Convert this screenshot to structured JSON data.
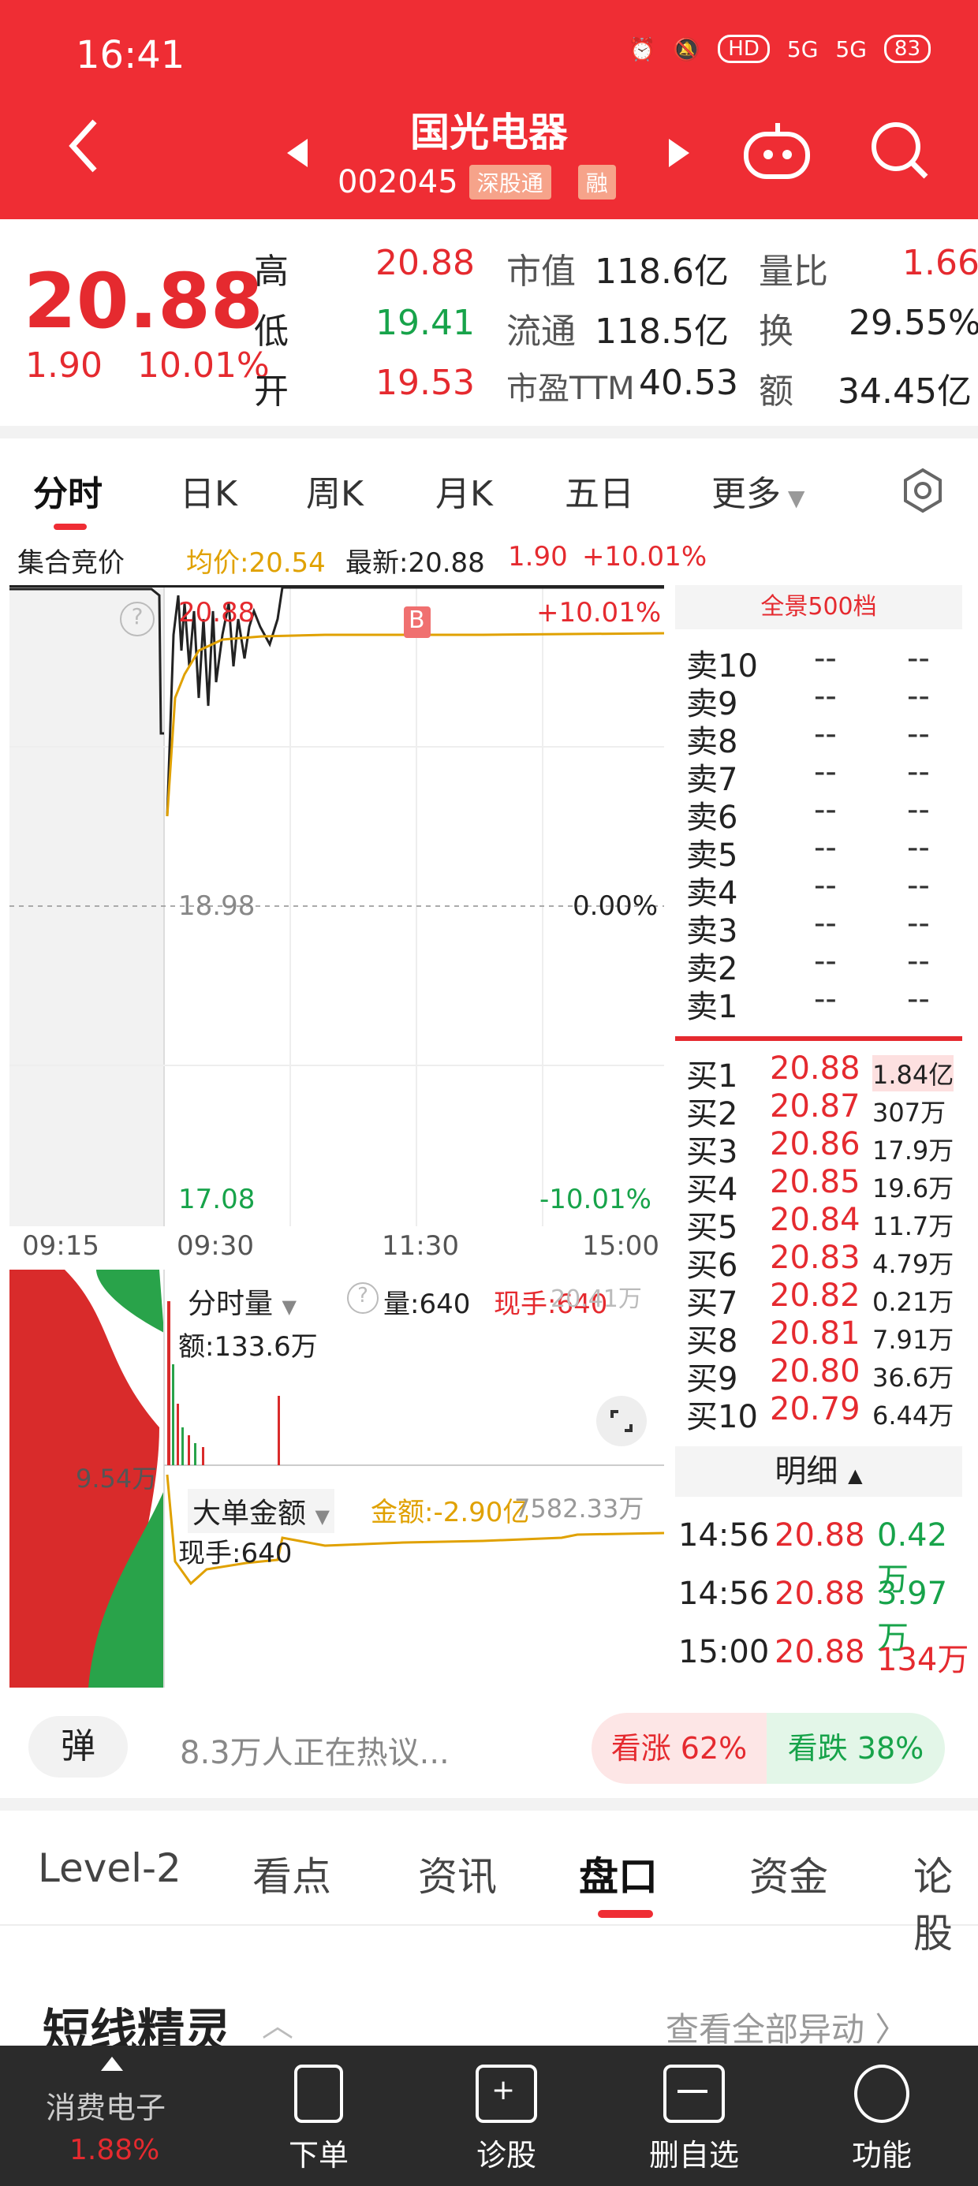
{
  "status": {
    "time": "16:41",
    "battery": "83",
    "hd": "HD",
    "net1": "5G",
    "net2": "5G"
  },
  "header": {
    "title": "国光电器",
    "code": "002045",
    "tag1": "深股通",
    "tag2": "融"
  },
  "quote": {
    "price": "20.88",
    "change": "1.90",
    "change_pct": "10.01%",
    "high_label": "高",
    "high": "20.88",
    "low_label": "低",
    "low": "19.41",
    "open_label": "开",
    "open": "19.53",
    "mcap_label": "市值",
    "mcap": "118.6亿",
    "float_label": "流通",
    "float": "118.5亿",
    "pe_label": "市盈TTM",
    "pe": "40.53",
    "vr_label": "量比",
    "vr": "1.66",
    "turn_label": "换",
    "turn": "29.55%",
    "amt_label": "额",
    "amt": "34.45亿"
  },
  "tabs": [
    "分时",
    "日K",
    "周K",
    "月K",
    "五日",
    "更多"
  ],
  "chart_info": {
    "auction": "集合竞价",
    "avg": "均价:20.54",
    "latest": "最新:20.88",
    "chg": "1.90",
    "pct": "+10.01%"
  },
  "chart_labels": {
    "top_price": "20.88",
    "top_pct": "+10.01%",
    "mid_price": "18.98",
    "mid_pct": "0.00%",
    "bot_price": "17.08",
    "bot_pct": "-10.01%",
    "b_marker": "B",
    "t1": "09:15",
    "t2": "09:30",
    "t3": "11:30",
    "t4": "15:00"
  },
  "volume_panel": {
    "title": "分时量",
    "vol": "量:640",
    "hand": "现手:640",
    "max": "20.41万",
    "amt": "额:133.6万",
    "left_val": "9.54万"
  },
  "big_panel": {
    "title": "大单金额",
    "amount": "金额:-2.90亿",
    "right": "7582.33万",
    "hand": "现手:640"
  },
  "orderbook": {
    "header": "全景500档",
    "sells": [
      {
        "label": "卖10",
        "price": "--",
        "vol": "--"
      },
      {
        "label": "卖9",
        "price": "--",
        "vol": "--"
      },
      {
        "label": "卖8",
        "price": "--",
        "vol": "--"
      },
      {
        "label": "卖7",
        "price": "--",
        "vol": "--"
      },
      {
        "label": "卖6",
        "price": "--",
        "vol": "--"
      },
      {
        "label": "卖5",
        "price": "--",
        "vol": "--"
      },
      {
        "label": "卖4",
        "price": "--",
        "vol": "--"
      },
      {
        "label": "卖3",
        "price": "--",
        "vol": "--"
      },
      {
        "label": "卖2",
        "price": "--",
        "vol": "--"
      },
      {
        "label": "卖1",
        "price": "--",
        "vol": "--"
      }
    ],
    "buys": [
      {
        "label": "买1",
        "price": "20.88",
        "vol": "1.84亿"
      },
      {
        "label": "买2",
        "price": "20.87",
        "vol": "307万"
      },
      {
        "label": "买3",
        "price": "20.86",
        "vol": "17.9万"
      },
      {
        "label": "买4",
        "price": "20.85",
        "vol": "19.6万"
      },
      {
        "label": "买5",
        "price": "20.84",
        "vol": "11.7万"
      },
      {
        "label": "买6",
        "price": "20.83",
        "vol": "4.79万"
      },
      {
        "label": "买7",
        "price": "20.82",
        "vol": "0.21万"
      },
      {
        "label": "买8",
        "price": "20.81",
        "vol": "7.91万"
      },
      {
        "label": "买9",
        "price": "20.80",
        "vol": "36.6万"
      },
      {
        "label": "买10",
        "price": "20.79",
        "vol": "6.44万"
      }
    ],
    "detail_title": "明细",
    "details": [
      {
        "time": "14:56",
        "price": "20.88",
        "vol": "0.42万"
      },
      {
        "time": "14:56",
        "price": "20.88",
        "vol": "3.97万"
      },
      {
        "time": "15:00",
        "price": "20.88",
        "vol": "134万"
      }
    ]
  },
  "social": {
    "danmu": "弹",
    "hot": "8.3万人正在热议...",
    "up": "看涨 62%",
    "down": "看跌 38%"
  },
  "tabs2": [
    "Level-2",
    "看点",
    "资讯",
    "盘口",
    "资金",
    "论股"
  ],
  "section": {
    "title": "短线精灵",
    "more": "查看全部异动"
  },
  "bottom_nav": {
    "sector": "消费电子",
    "sector_pct": "1.88%",
    "items": [
      "下单",
      "诊股",
      "删自选",
      "功能"
    ]
  }
}
